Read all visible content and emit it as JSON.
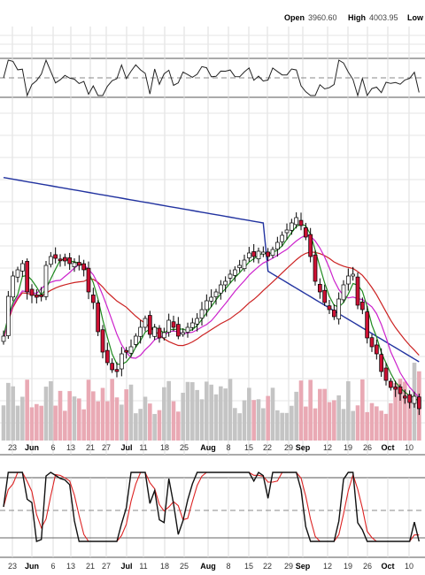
{
  "header": {
    "open_label": "Open",
    "open_value": "3960.60",
    "high_label": "High",
    "high_value": "4003.95",
    "low_label": "Low"
  },
  "chart_data": {
    "type": "candlestick",
    "x_tick_labels": [
      {
        "label": "23",
        "bold": false
      },
      {
        "label": "Jun",
        "bold": true
      },
      {
        "label": "6",
        "bold": false
      },
      {
        "label": "13",
        "bold": false
      },
      {
        "label": "21",
        "bold": false
      },
      {
        "label": "27",
        "bold": false
      },
      {
        "label": "Jul",
        "bold": true
      },
      {
        "label": "11",
        "bold": false
      },
      {
        "label": "18",
        "bold": false
      },
      {
        "label": "25",
        "bold": false
      },
      {
        "label": "Aug",
        "bold": true
      },
      {
        "label": "8",
        "bold": false
      },
      {
        "label": "15",
        "bold": false
      },
      {
        "label": "22",
        "bold": false
      },
      {
        "label": "29",
        "bold": false
      },
      {
        "label": "Sep",
        "bold": true
      },
      {
        "label": "12",
        "bold": false
      },
      {
        "label": "19",
        "bold": false
      },
      {
        "label": "26",
        "bold": false
      },
      {
        "label": "Oct",
        "bold": true
      },
      {
        "label": "10",
        "bold": false
      }
    ],
    "candles_close_level": [
      380,
      335,
      312,
      305,
      298,
      330,
      334,
      336,
      335,
      300,
      290,
      292,
      294,
      295,
      298,
      297,
      300,
      305,
      330,
      342,
      375,
      398,
      410,
      418,
      420,
      400,
      398,
      392,
      380,
      370,
      360,
      378,
      370,
      382,
      376,
      362,
      370,
      380,
      376,
      370,
      365,
      360,
      350,
      340,
      336,
      330,
      322,
      318,
      310,
      305,
      300,
      294,
      286,
      290,
      284,
      285,
      290,
      282,
      274,
      266,
      260,
      252,
      246,
      255,
      268,
      290,
      318,
      330,
      342,
      350,
      358,
      338,
      322,
      312,
      310,
      345,
      350,
      382,
      392,
      400,
      420,
      430,
      438,
      440,
      445,
      450,
      455,
      448,
      462
    ],
    "price_indicator_series": [
      {
        "name": "SMA 200",
        "color": "#2233a0"
      },
      {
        "name": "SMA 50",
        "color": "#cc2222"
      },
      {
        "name": "SMA 20",
        "color": "#cc22cc"
      },
      {
        "name": "SMA 10",
        "color": "#1f8a1f"
      }
    ],
    "volume": "bars per session, red on down days, grey on up days",
    "oscillator_top": {
      "type": "line",
      "color": "#222222"
    },
    "oscillator_bottom": {
      "type": "stochastic",
      "fast_color": "#111111",
      "slow_color": "#dd2222"
    },
    "grid": true
  }
}
